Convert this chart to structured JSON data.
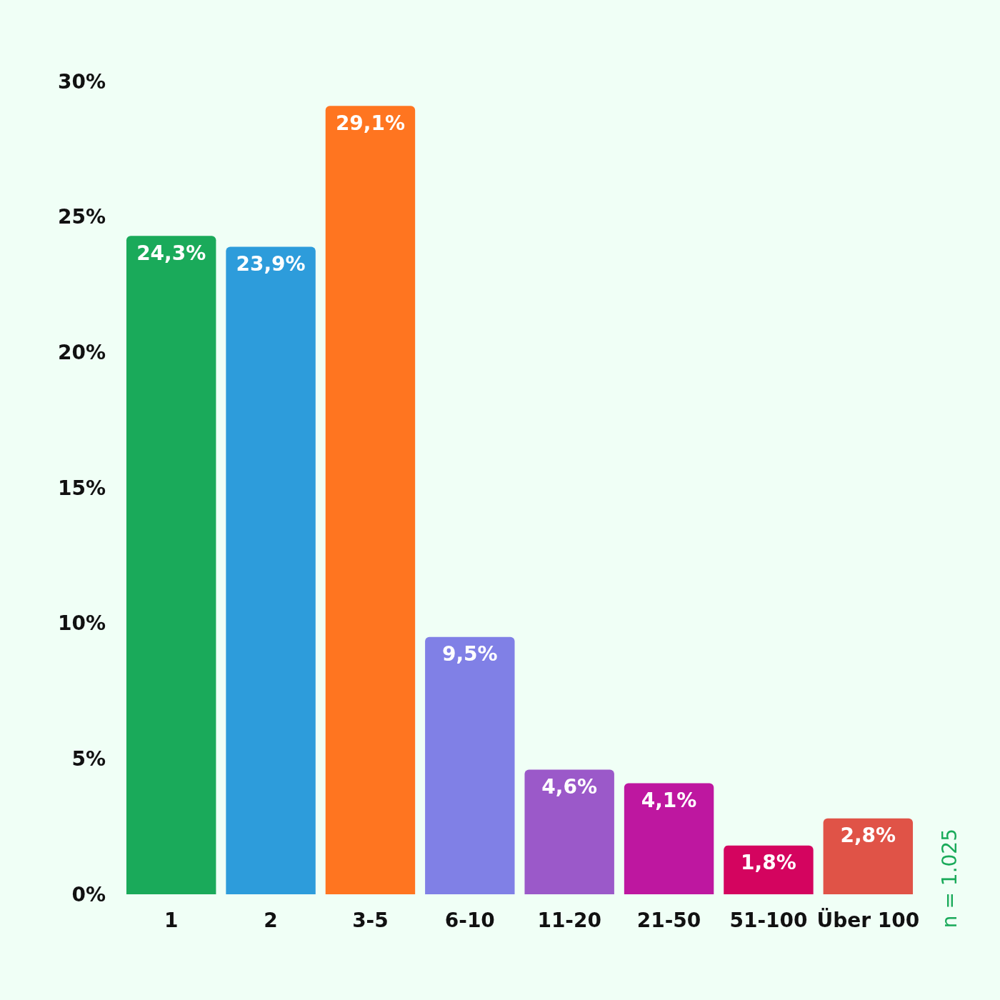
{
  "chart_data": {
    "type": "bar",
    "categories": [
      "1",
      "2",
      "3-5",
      "6-10",
      "11-20",
      "21-50",
      "51-100",
      "Über 100"
    ],
    "values": [
      24.3,
      23.9,
      29.1,
      9.5,
      4.6,
      4.1,
      1.8,
      2.8
    ],
    "colors": [
      "#1aaa5a",
      "#2d9cdb",
      "#ff7520",
      "#8080e6",
      "#9b59c9",
      "#be17a0",
      "#d4045f",
      "#e05347"
    ],
    "value_labels": [
      "24,3%",
      "23,9%",
      "29,1%",
      "9,5%",
      "4,6%",
      "4,1%",
      "1,8%",
      "2,8%"
    ],
    "ylim": [
      0,
      30
    ],
    "yticks": [
      {
        "value": 0,
        "label": "0%"
      },
      {
        "value": 5,
        "label": "5%"
      },
      {
        "value": 10,
        "label": "10%"
      },
      {
        "value": 15,
        "label": "15%"
      },
      {
        "value": 20,
        "label": "20%"
      },
      {
        "value": 25,
        "label": "25%"
      },
      {
        "value": 30,
        "label": "30%"
      }
    ],
    "grid": false,
    "annotations": [
      "n = 1.025"
    ]
  }
}
